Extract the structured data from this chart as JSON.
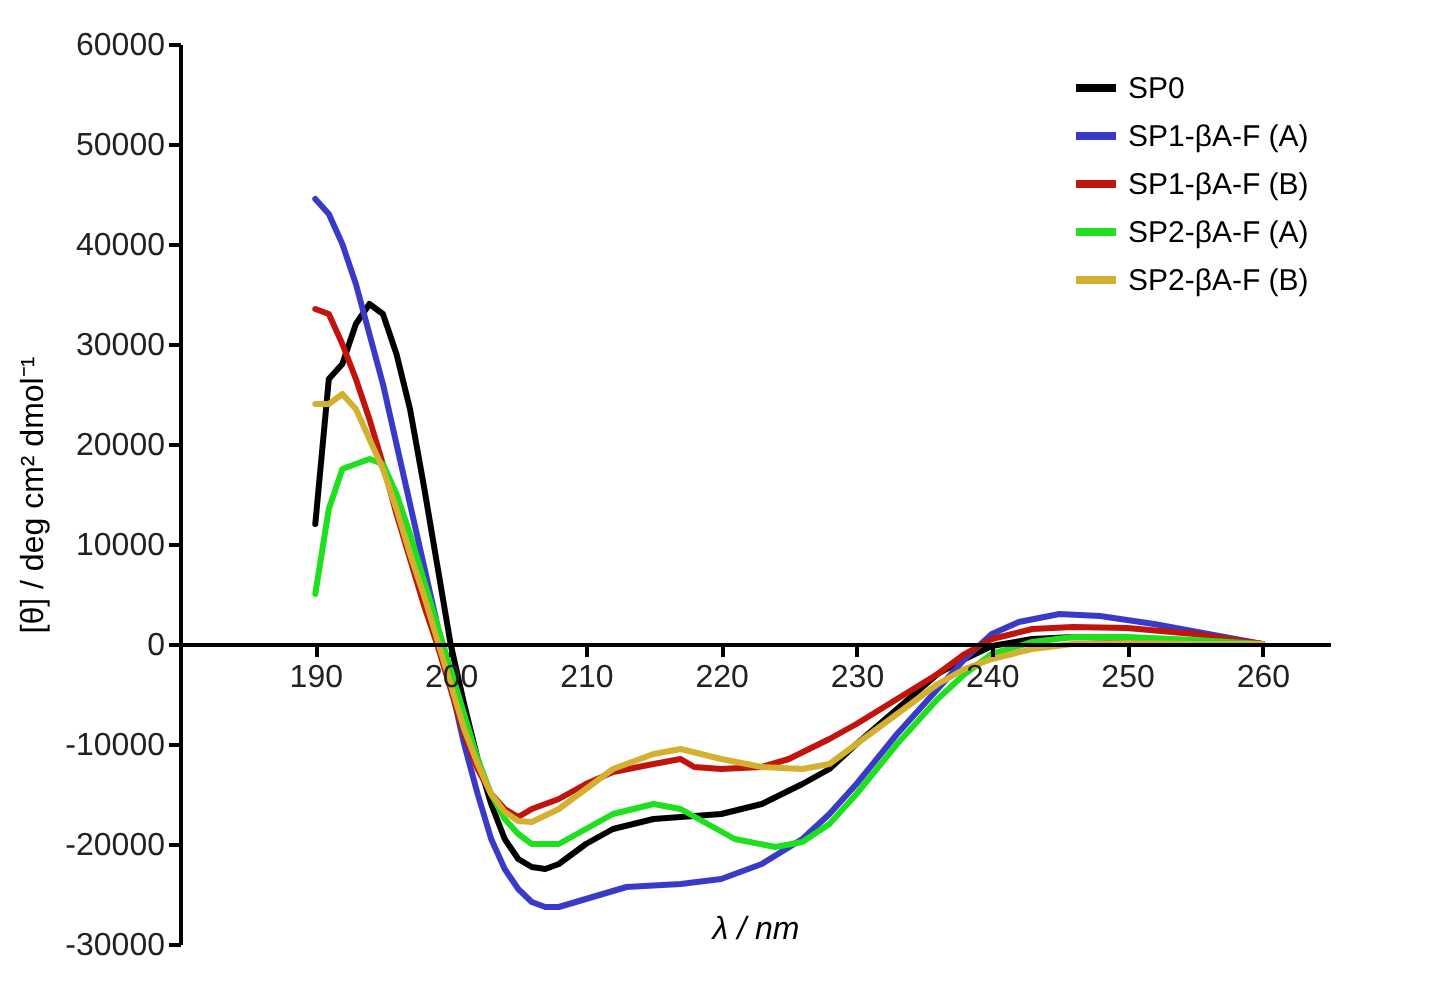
{
  "chart_data": {
    "type": "line",
    "xlabel": "λ / nm",
    "ylabel": "[θ] / deg cm² dmol⁻¹",
    "xlim": [
      180,
      265
    ],
    "xticks": [
      190,
      200,
      210,
      220,
      230,
      240,
      250,
      260
    ],
    "ylim": [
      -30000,
      60000
    ],
    "yticks": [
      -30000,
      -20000,
      -10000,
      0,
      10000,
      20000,
      30000,
      40000,
      50000,
      60000
    ],
    "grid": false,
    "legend": "top right",
    "line_style": "solid",
    "series": [
      {
        "name": "SP0",
        "color": "#000000",
        "x": [
          190,
          191,
          192,
          193,
          194,
          195,
          196,
          197,
          198,
          199,
          200,
          201,
          202,
          203,
          204,
          205,
          206,
          207,
          208,
          210,
          212,
          215,
          220,
          223,
          226,
          228,
          230,
          233,
          236,
          238,
          240,
          243,
          246,
          250,
          255,
          260
        ],
        "values": [
          12000,
          26500,
          28000,
          32000,
          34000,
          33000,
          29000,
          23500,
          16000,
          8000,
          0,
          -6000,
          -11500,
          -16000,
          -19500,
          -21500,
          -22300,
          -22500,
          -22000,
          -20000,
          -18500,
          -17500,
          -17000,
          -16000,
          -14000,
          -12500,
          -10000,
          -6500,
          -3000,
          -1500,
          -200,
          500,
          700,
          600,
          300,
          0
        ]
      },
      {
        "name": "SP1-βA-F (A)",
        "color": "#3a3ac8",
        "x": [
          190,
          191,
          192,
          193,
          194,
          195,
          196,
          197,
          198,
          199,
          200,
          201,
          202,
          203,
          204,
          205,
          206,
          207,
          208,
          210,
          213,
          217,
          220,
          223,
          226,
          228,
          230,
          233,
          236,
          238,
          240,
          242,
          245,
          248,
          252,
          256,
          260
        ],
        "values": [
          44500,
          43000,
          40000,
          36000,
          31000,
          26000,
          20000,
          14000,
          8000,
          2000,
          -4000,
          -10000,
          -15000,
          -19500,
          -22500,
          -24500,
          -25800,
          -26300,
          -26300,
          -25500,
          -24300,
          -24000,
          -23500,
          -22000,
          -19500,
          -17000,
          -14000,
          -9000,
          -4500,
          -1500,
          1000,
          2200,
          3000,
          2800,
          2000,
          1000,
          0
        ]
      },
      {
        "name": "SP1-βA-F (B)",
        "color": "#c0140c",
        "x": [
          190,
          191,
          192,
          193,
          194,
          195,
          196,
          197,
          198,
          199,
          200,
          201,
          202,
          203,
          204,
          205,
          206,
          208,
          210,
          212,
          215,
          217,
          218,
          220,
          223,
          225,
          228,
          230,
          233,
          236,
          238,
          240,
          243,
          246,
          250,
          255,
          260
        ],
        "values": [
          33500,
          33000,
          30000,
          26500,
          22500,
          18000,
          13000,
          8500,
          4000,
          0,
          -4500,
          -9000,
          -12500,
          -15000,
          -16500,
          -17300,
          -16500,
          -15500,
          -14000,
          -12800,
          -12000,
          -11500,
          -12300,
          -12500,
          -12300,
          -11500,
          -9500,
          -8000,
          -5500,
          -3000,
          -1000,
          500,
          1500,
          1700,
          1600,
          1000,
          0
        ]
      },
      {
        "name": "SP2-βA-F (A)",
        "color": "#1ee01e",
        "x": [
          190,
          191,
          192,
          193,
          194,
          195,
          196,
          197,
          198,
          199,
          200,
          201,
          202,
          203,
          204,
          205,
          206,
          208,
          210,
          212,
          215,
          217,
          219,
          221,
          224,
          226,
          228,
          230,
          233,
          236,
          238,
          240,
          243,
          246,
          250,
          255,
          260
        ],
        "values": [
          5000,
          13500,
          17500,
          18000,
          18500,
          18000,
          15000,
          11000,
          6500,
          2000,
          -2500,
          -7000,
          -11500,
          -15000,
          -17500,
          -19000,
          -20000,
          -20000,
          -18500,
          -17000,
          -16000,
          -16500,
          -18000,
          -19500,
          -20300,
          -19800,
          -18000,
          -15000,
          -10000,
          -5500,
          -3000,
          -1000,
          200,
          700,
          700,
          400,
          0
        ]
      },
      {
        "name": "SP2-βA-F (B)",
        "color": "#d4b030",
        "x": [
          190,
          191,
          192,
          193,
          194,
          195,
          196,
          197,
          198,
          199,
          200,
          201,
          202,
          203,
          204,
          205,
          206,
          208,
          210,
          212,
          215,
          217,
          220,
          223,
          226,
          228,
          230,
          233,
          236,
          238,
          240,
          243,
          246,
          250,
          255,
          260
        ],
        "values": [
          24000,
          24000,
          25000,
          23500,
          20500,
          17500,
          13500,
          9000,
          5000,
          500,
          -4000,
          -8500,
          -12000,
          -15000,
          -16800,
          -17700,
          -17800,
          -16500,
          -14500,
          -12500,
          -11000,
          -10500,
          -11500,
          -12300,
          -12500,
          -12000,
          -10000,
          -7000,
          -4000,
          -2500,
          -1500,
          -500,
          0,
          100,
          0,
          0
        ]
      }
    ]
  }
}
